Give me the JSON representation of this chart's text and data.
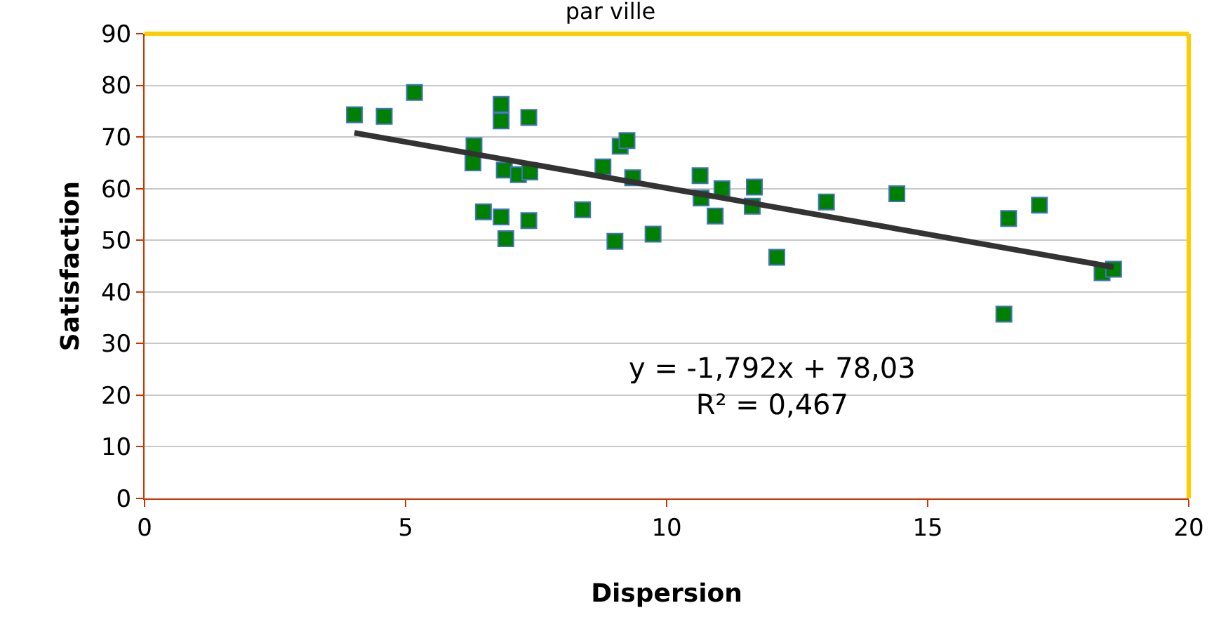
{
  "chart_data": {
    "type": "scatter",
    "title": "par ville",
    "xlabel": "Dispersion",
    "ylabel": "Satisfaction",
    "xlim": [
      0,
      20
    ],
    "xticks": [
      0,
      5,
      10,
      15,
      20
    ],
    "ylim": [
      0,
      90
    ],
    "yticks": [
      0,
      10,
      20,
      30,
      40,
      50,
      60,
      70,
      80,
      90
    ],
    "grid": "y",
    "marker": "square",
    "annotations": [
      "y = -1,792x + 78,03\nR² = 0,467"
    ],
    "series": [
      {
        "color": "#008000",
        "x": [
          4.02,
          4.59,
          5.17,
          6.31,
          6.29,
          6.83,
          6.83,
          7.36,
          6.89,
          7.16,
          7.38,
          6.49,
          6.83,
          7.36,
          6.92,
          8.39,
          9.01,
          9.74,
          8.78,
          9.11,
          9.24,
          9.35,
          10.64,
          11.06,
          10.66,
          10.93,
          11.68,
          11.64,
          13.06,
          12.11,
          14.41,
          16.55,
          17.14,
          16.46,
          18.34,
          18.56
        ],
        "values": [
          74.3,
          74.0,
          78.6,
          68.3,
          65.0,
          76.3,
          73.1,
          73.8,
          63.6,
          62.7,
          63.2,
          55.5,
          54.5,
          53.8,
          50.3,
          55.9,
          49.8,
          51.2,
          64.2,
          68.2,
          69.3,
          62.1,
          62.5,
          60.0,
          58.2,
          54.7,
          60.3,
          56.6,
          57.4,
          46.7,
          59.0,
          54.2,
          56.8,
          35.7,
          43.7,
          44.4
        ]
      },
      {
        "type": "line",
        "color": "#333333",
        "x": [
          4.02,
          18.56
        ],
        "values": [
          70.8,
          44.8
        ],
        "marker": "none"
      }
    ]
  }
}
